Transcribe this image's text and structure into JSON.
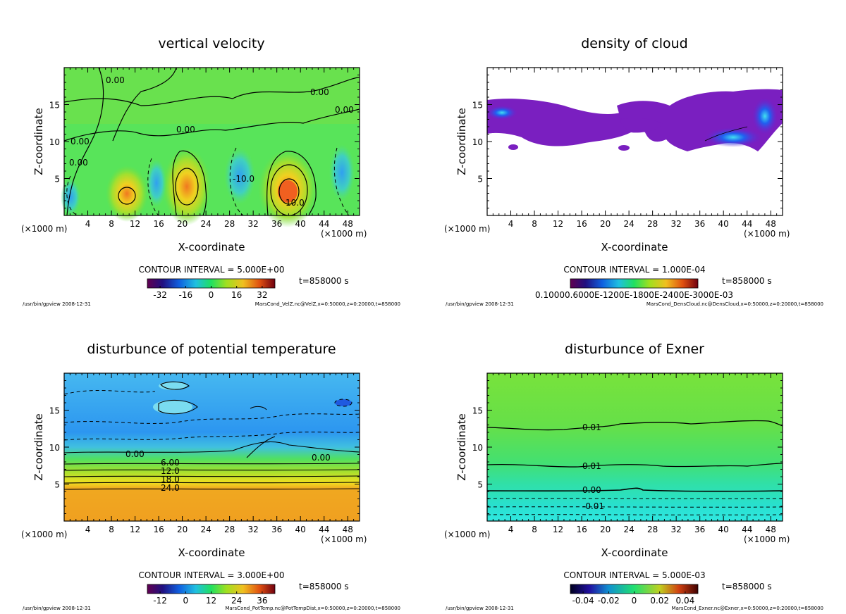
{
  "common": {
    "xlabel": "X-coordinate",
    "ylabel": "Z-coordinate",
    "unit_left": "(×1000 m)",
    "unit_right": "(×1000 m)",
    "time": "t=858000 s",
    "footer_left": "/usr/bin/gpview   2008-12-31",
    "x_ticks": [
      4,
      8,
      12,
      16,
      20,
      24,
      28,
      32,
      36,
      40,
      44,
      48
    ],
    "y_ticks": [
      5,
      10,
      15
    ],
    "xlim": [
      0,
      50
    ],
    "ylim": [
      0,
      20
    ]
  },
  "chart_data": [
    {
      "type": "heatmap",
      "title": "vertical velocity",
      "contour_interval": "CONTOUR INTERVAL = 5.000E+00",
      "colorbar_ticks": [
        "-32",
        "-16",
        "0",
        "16",
        "32"
      ],
      "contour_labels": [
        "0.00",
        "0.00",
        "0.00",
        "0.00",
        "0.00",
        "-10.0",
        "10.0",
        "0.00"
      ],
      "footer_right": "MarsCond_VelZ.nc@VelZ,x=0:50000,z=0:20000,t=858000",
      "colors": {
        "background": "#58e45a",
        "accent": "#f0c020"
      }
    },
    {
      "type": "heatmap",
      "title": "density of cloud",
      "contour_interval": "CONTOUR INTERVAL = 1.000E-04",
      "colorbar_ticks": [
        "0.1000E-03",
        "0.6000E-03",
        "0.1200E-02",
        "0.1800E-02",
        "0.2400E-02",
        "0.3000E-02"
      ],
      "colorbar_label_overlap": "0.10000.6000E-1200E-1800E-2400E-3000E-03",
      "contour_labels": [],
      "footer_right": "MarsCond_DensCloud.nc@DensCloud,x=0:50000,z=0:20000,t=858000",
      "colors": {
        "background": "#ffffff",
        "accent": "#7a1fc0"
      }
    },
    {
      "type": "heatmap",
      "title": "disturbunce of potential temperature",
      "contour_interval": "CONTOUR INTERVAL = 3.000E+00",
      "colorbar_ticks": [
        "-12",
        "0",
        "12",
        "24",
        "36"
      ],
      "contour_labels": [
        "0.00",
        "6.00",
        "12.0",
        "18.0",
        "24.0",
        "0.00"
      ],
      "footer_right": "MarsCond_PotTemp.nc@PotTempDist,x=0:50000,z=0:20000,t=858000",
      "colors": {
        "background": "#3aa0f0",
        "accent": "#f0a020"
      }
    },
    {
      "type": "heatmap",
      "title": "disturbunce of Exner",
      "contour_interval": "CONTOUR INTERVAL = 5.000E-03",
      "colorbar_ticks": [
        "-0.04",
        "-0.02",
        "0",
        "0.02",
        "0.04"
      ],
      "contour_labels": [
        "0.01",
        "0.01",
        "0.00",
        "-0.01"
      ],
      "footer_right": "MarsCond_Exner.nc@Exner,x=0:50000,z=0:20000,t=858000",
      "colors": {
        "background": "#6ee040",
        "accent": "#30e0c0"
      }
    }
  ]
}
